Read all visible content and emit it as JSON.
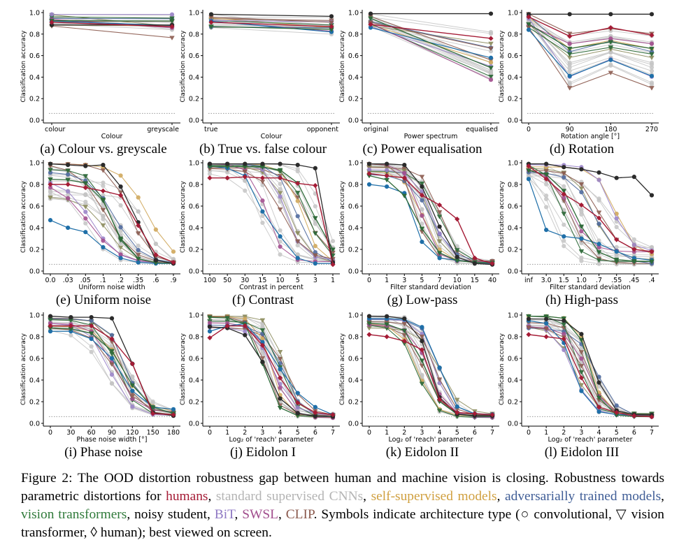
{
  "colors": {
    "humans": "#a51c36",
    "cnn": "#c4c4c4",
    "self_supervised": "#d0a85c",
    "adversarial": "#4e6a9e",
    "vit": "#2f6b3a",
    "noisy_student": "#2b2b2b",
    "bit": "#9b85c9",
    "swsl": "#a24e8e",
    "clip": "#8b5a4e",
    "blue": "#1f6fa8",
    "olive": "#8a8a5a"
  },
  "chart_data": [
    {
      "id": "a",
      "type": "line",
      "title": "(a) Colour vs. greyscale",
      "xlabel": "Colour",
      "ylabel": "Classification accuracy",
      "categories": [
        "colour",
        "greyscale"
      ],
      "ylim": [
        0,
        1
      ],
      "yticks": [
        "0.0",
        "0.2",
        "0.4",
        "0.6",
        "0.8",
        "1.0"
      ],
      "chance": 0.0625
    },
    {
      "id": "b",
      "type": "line",
      "title": "(b) True vs. false colour",
      "xlabel": "Colour",
      "ylabel": "Classification accuracy",
      "categories": [
        "true",
        "opponent"
      ],
      "ylim": [
        0,
        1
      ],
      "yticks": [
        "0.0",
        "0.2",
        "0.4",
        "0.6",
        "0.8",
        "1.0"
      ],
      "chance": 0.0625
    },
    {
      "id": "c",
      "type": "line",
      "title": "(c) Power equalisation",
      "xlabel": "Power spectrum",
      "ylabel": "Classification accuracy",
      "categories": [
        "original",
        "equalised"
      ],
      "ylim": [
        0,
        1
      ],
      "yticks": [
        "0.0",
        "0.2",
        "0.4",
        "0.6",
        "0.8",
        "1.0"
      ],
      "chance": 0.0625
    },
    {
      "id": "d",
      "type": "line",
      "title": "(d) Rotation",
      "xlabel": "Rotation angle [°]",
      "ylabel": "Classification accuracy",
      "categories": [
        "0",
        "90",
        "180",
        "270"
      ],
      "ylim": [
        0,
        1
      ],
      "yticks": [
        "0.0",
        "0.2",
        "0.4",
        "0.6",
        "0.8",
        "1.0"
      ],
      "chance": 0.0625
    },
    {
      "id": "e",
      "type": "line",
      "title": "(e) Uniform noise",
      "xlabel": "Uniform noise width",
      "ylabel": "Classification accuracy",
      "categories": [
        "0.0",
        ".03",
        ".05",
        ".1",
        ".2",
        ".35",
        ".6",
        ".9"
      ],
      "ylim": [
        0,
        1
      ],
      "yticks": [
        "0.0",
        "0.2",
        "0.4",
        "0.6",
        "0.8",
        "1.0"
      ],
      "chance": 0.0625
    },
    {
      "id": "f",
      "type": "line",
      "title": "(f) Contrast",
      "xlabel": "Contrast in percent",
      "ylabel": "Classification accuracy",
      "categories": [
        "100",
        "50",
        "30",
        "15",
        "10",
        "5",
        "3",
        "1"
      ],
      "ylim": [
        0,
        1
      ],
      "yticks": [
        "0.0",
        "0.2",
        "0.4",
        "0.6",
        "0.8",
        "1.0"
      ],
      "chance": 0.0625
    },
    {
      "id": "g",
      "type": "line",
      "title": "(g) Low-pass",
      "xlabel": "Filter standard deviation",
      "ylabel": "Classification accuracy",
      "categories": [
        "0",
        "1",
        "3",
        "5",
        "7",
        "10",
        "15",
        "40"
      ],
      "ylim": [
        0,
        1
      ],
      "yticks": [
        "0.0",
        "0.2",
        "0.4",
        "0.6",
        "0.8",
        "1.0"
      ],
      "chance": 0.0625
    },
    {
      "id": "h",
      "type": "line",
      "title": "(h) High-pass",
      "xlabel": "Filter standard deviation",
      "ylabel": "Classification accuracy",
      "categories": [
        "inf",
        "3.0",
        "1.5",
        "1.0",
        ".7",
        ".55",
        ".45",
        ".4"
      ],
      "ylim": [
        0,
        1
      ],
      "yticks": [
        "0.0",
        "0.2",
        "0.4",
        "0.6",
        "0.8",
        "1.0"
      ],
      "chance": 0.0625
    },
    {
      "id": "i",
      "type": "line",
      "title": "(i) Phase noise",
      "xlabel": "Phase noise width [°]",
      "ylabel": "Classification accuracy",
      "categories": [
        "0",
        "30",
        "60",
        "90",
        "120",
        "150",
        "180"
      ],
      "ylim": [
        0,
        1
      ],
      "yticks": [
        "0.0",
        "0.2",
        "0.4",
        "0.6",
        "0.8",
        "1.0"
      ],
      "chance": 0.0625
    },
    {
      "id": "j",
      "type": "line",
      "title": "(j) Eidolon I",
      "xlabel": "Log₂ of 'reach' parameter",
      "ylabel": "Classification accuracy",
      "categories": [
        "0",
        "1",
        "2",
        "3",
        "4",
        "5",
        "6",
        "7"
      ],
      "ylim": [
        0,
        1
      ],
      "yticks": [
        "0.0",
        "0.2",
        "0.4",
        "0.6",
        "0.8",
        "1.0"
      ],
      "chance": 0.0625
    },
    {
      "id": "k",
      "type": "line",
      "title": "(k) Eidolon II",
      "xlabel": "Log₂ of 'reach' parameter",
      "ylabel": "Classification accuracy",
      "categories": [
        "0",
        "1",
        "2",
        "3",
        "4",
        "5",
        "6",
        "7"
      ],
      "ylim": [
        0,
        1
      ],
      "yticks": [
        "0.0",
        "0.2",
        "0.4",
        "0.6",
        "0.8",
        "1.0"
      ],
      "chance": 0.0625
    },
    {
      "id": "l",
      "type": "line",
      "title": "(l) Eidolon III",
      "xlabel": "Log₂ of 'reach' parameter",
      "ylabel": "Classification accuracy",
      "categories": [
        "0",
        "1",
        "2",
        "3",
        "4",
        "5",
        "6",
        "7"
      ],
      "ylim": [
        0,
        1
      ],
      "yticks": [
        "0.0",
        "0.2",
        "0.4",
        "0.6",
        "0.8",
        "1.0"
      ],
      "chance": 0.0625
    }
  ],
  "caption": {
    "lead": "Figure 2: The OOD distortion robustness gap between human and machine vision is closing. Robustness towards parametric distortions for ",
    "humans": "humans",
    "sep1": ", ",
    "cnn": "standard supervised CNNs",
    "sep2": ", ",
    "self_supervised": "self-supervised models",
    "sep3": ", ",
    "adversarial": "adversarially trained models",
    "sep4": ", ",
    "vit": "vision transformers",
    "sep5": ", noisy student, ",
    "bit": "BiT",
    "sep6": ", ",
    "swsl": "SWSL",
    "sep7": ", ",
    "clip": "CLIP",
    "tail": ". Symbols indicate architecture type (○ convolutional, ▽ vision transformer, ◊ human); best viewed on screen."
  }
}
